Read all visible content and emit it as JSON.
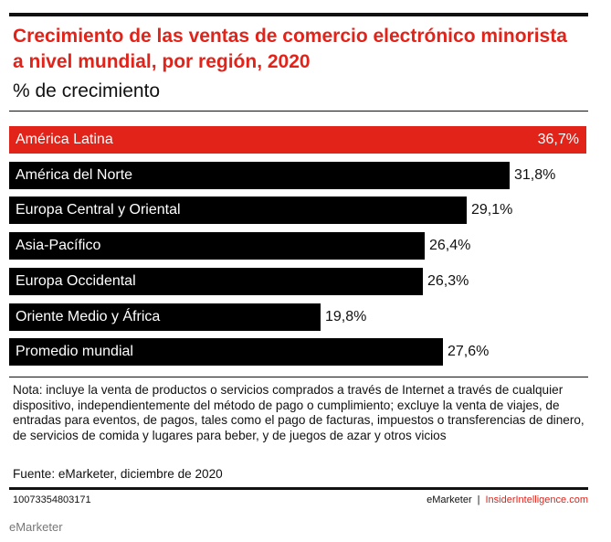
{
  "chart_data": {
    "type": "bar",
    "orientation": "horizontal",
    "title": "Crecimiento de las ventas de comercio electrónico minorista a nivel mundial, por región, 2020",
    "subtitle": "% de crecimiento",
    "categories": [
      "América Latina",
      "América del Norte",
      "Europa Central y Oriental",
      "Asia-Pacífico",
      "Europa Occidental",
      "Oriente Medio y África",
      "Promedio mundial"
    ],
    "values": [
      36.7,
      31.8,
      29.1,
      26.4,
      26.3,
      19.8,
      27.6
    ],
    "value_labels": [
      "36,7%",
      "31,8%",
      "29,1%",
      "26,4%",
      "26,3%",
      "19,8%",
      "27,6%"
    ],
    "highlight_index": 0,
    "xlim": [
      0,
      36.7
    ],
    "grid": false,
    "legend": "none"
  },
  "note": "Nota: incluye la venta de productos o servicios comprados a través de Internet a través de cualquier dispositivo, independientemente del método de pago o cumplimiento; excluye la venta de viajes, de entradas para eventos, de pagos, tales como el pago de facturas, impuestos o transferencias de dinero, de servicios de comida y lugares para beber, y de juegos de azar y otros vicios",
  "source": "Fuente: eMarketer, diciembre de 2020",
  "footer": {
    "chart_id": "10073354803171",
    "brand": "eMarketer",
    "separator": "|",
    "brand2": "InsiderIntelligence.com"
  },
  "caption": "eMarketer",
  "colors": {
    "highlight": "#e2231a",
    "bar": "#000000",
    "title": "#e2231a",
    "text": "#111111"
  }
}
